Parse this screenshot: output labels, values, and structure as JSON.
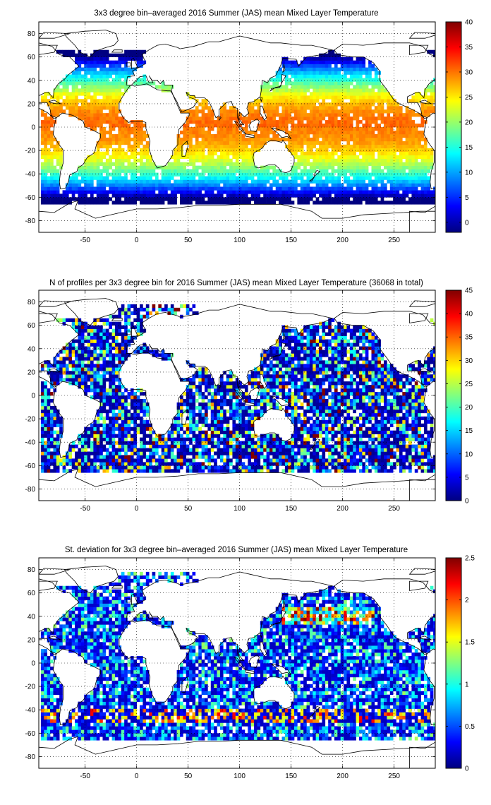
{
  "chart_data": [
    {
      "type": "heatmap",
      "title": "3x3 degree bin–averaged 2016 Summer (JAS) mean Mixed Layer Temperature",
      "xlabel": "",
      "ylabel": "",
      "xlim": [
        -95,
        290
      ],
      "ylim": [
        -90,
        90
      ],
      "x_ticks": [
        "-50",
        "0",
        "50",
        "100",
        "150",
        "200",
        "250"
      ],
      "y_ticks": [
        "80",
        "60",
        "40",
        "20",
        "0",
        "-20",
        "-40",
        "-60",
        "-80"
      ],
      "colorbar": {
        "min": -2,
        "max": 40,
        "ticks": [
          "40",
          "35",
          "30",
          "25",
          "20",
          "15",
          "10",
          "5",
          "0"
        ]
      },
      "grid": true,
      "field": "temperature"
    },
    {
      "type": "heatmap",
      "title": "N of profiles per 3x3 degree bin for 2016 Summer (JAS) mean Mixed Layer Temperature  (36068 in total)",
      "xlabel": "",
      "ylabel": "",
      "xlim": [
        -95,
        290
      ],
      "ylim": [
        -90,
        90
      ],
      "x_ticks": [
        "-50",
        "0",
        "50",
        "100",
        "150",
        "200",
        "250"
      ],
      "y_ticks": [
        "80",
        "60",
        "40",
        "20",
        "0",
        "-20",
        "-40",
        "-60",
        "-80"
      ],
      "colorbar": {
        "min": 0,
        "max": 45,
        "ticks": [
          "45",
          "40",
          "35",
          "30",
          "25",
          "20",
          "15",
          "10",
          "5",
          "0"
        ]
      },
      "grid": true,
      "field": "count"
    },
    {
      "type": "heatmap",
      "title": "St. deviation for 3x3 degree bin–averaged 2016 Summer (JAS) mean Mixed Layer Temperature",
      "xlabel": "",
      "ylabel": "",
      "xlim": [
        -95,
        290
      ],
      "ylim": [
        -90,
        90
      ],
      "x_ticks": [
        "-50",
        "0",
        "50",
        "100",
        "150",
        "200",
        "250"
      ],
      "y_ticks": [
        "80",
        "60",
        "40",
        "20",
        "0",
        "-20",
        "-40",
        "-60",
        "-80"
      ],
      "colorbar": {
        "min": 0,
        "max": 2.5,
        "ticks": [
          "2.5",
          "2",
          "1.5",
          "1",
          "0.5",
          "0"
        ]
      },
      "grid": true,
      "field": "stdev"
    }
  ]
}
